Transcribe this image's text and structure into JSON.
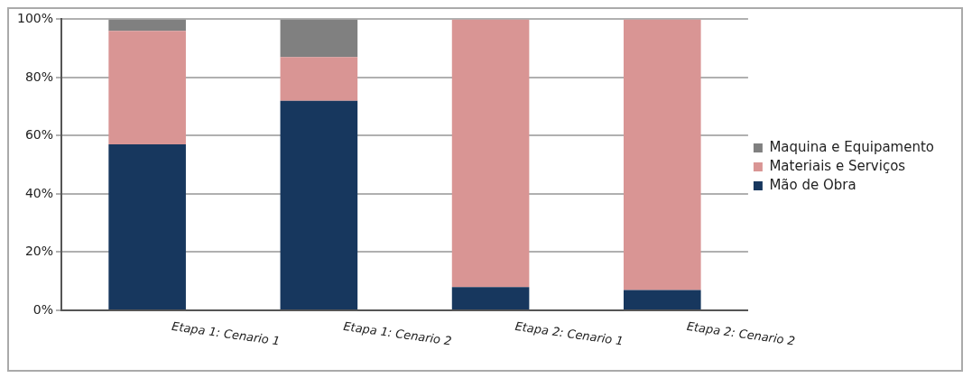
{
  "chart_data": {
    "type": "bar",
    "stacked": true,
    "categories": [
      "Etapa 1: Cenario 1",
      "Etapa 1: Cenario 2",
      "Etapa 2: Cenario 1",
      "Etapa 2: Cenario 2"
    ],
    "series": [
      {
        "name": "Mão de Obra",
        "color": "#17375e",
        "values": [
          57,
          72,
          8,
          7
        ]
      },
      {
        "name": "Materiais e Serviços",
        "color": "#d99594",
        "values": [
          39,
          15,
          92,
          93
        ]
      },
      {
        "name": "Maquina e Equipamento",
        "color": "#808080",
        "values": [
          4,
          13,
          0,
          0
        ]
      }
    ],
    "ylim": [
      0,
      100
    ],
    "yticks": [
      {
        "value": 0,
        "label": "0%"
      },
      {
        "value": 20,
        "label": "20%"
      },
      {
        "value": 40,
        "label": "40%"
      },
      {
        "value": 60,
        "label": "60%"
      },
      {
        "value": 80,
        "label": "80%"
      },
      {
        "value": 100,
        "label": "100%"
      }
    ],
    "grid": "y",
    "legend": "right"
  }
}
